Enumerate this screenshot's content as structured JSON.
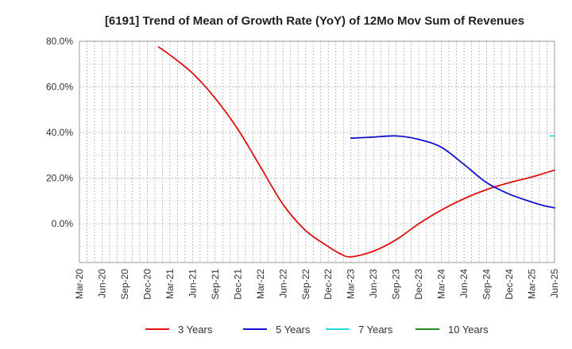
{
  "chart_data": {
    "type": "line",
    "title": "[6191]  Trend of Mean of Growth Rate (YoY) of 12Mo Mov Sum of Revenues",
    "xlabel": "",
    "ylabel": "",
    "ylim": [
      -17,
      80
    ],
    "y_ticks": [
      {
        "value": 80,
        "label": "80.0%"
      },
      {
        "value": 60,
        "label": "60.0%"
      },
      {
        "value": 40,
        "label": "40.0%"
      },
      {
        "value": 20,
        "label": "20.0%"
      },
      {
        "value": 0,
        "label": "0.0%"
      }
    ],
    "x_ticks": [
      "Mar-20",
      "Jun-20",
      "Sep-20",
      "Dec-20",
      "Mar-21",
      "Jun-21",
      "Sep-21",
      "Dec-21",
      "Mar-22",
      "Jun-22",
      "Sep-22",
      "Dec-22",
      "Mar-23",
      "Jun-23",
      "Sep-23",
      "Dec-23",
      "Mar-24",
      "Jun-24",
      "Sep-24",
      "Dec-24",
      "Mar-25",
      "Jun-25"
    ],
    "grid": true,
    "legend_position": "bottom",
    "series": [
      {
        "name": "3 Years",
        "color": "#dd1111",
        "points": [
          [
            3.5,
            77.5
          ],
          [
            4,
            74
          ],
          [
            5,
            66
          ],
          [
            6,
            55
          ],
          [
            7,
            41.5
          ],
          [
            8,
            25
          ],
          [
            9,
            8.5
          ],
          [
            10,
            -3
          ],
          [
            11,
            -10
          ],
          [
            11.5,
            -13
          ],
          [
            12,
            -14.5
          ],
          [
            13,
            -12
          ],
          [
            14,
            -7
          ],
          [
            15,
            0
          ],
          [
            16,
            6
          ],
          [
            17,
            11
          ],
          [
            18,
            15
          ],
          [
            19,
            18
          ],
          [
            20,
            20.5
          ],
          [
            20.5,
            22
          ],
          [
            21,
            23.5
          ]
        ]
      },
      {
        "name": "5 Years",
        "color": "#1111cc",
        "points": [
          [
            12,
            37.5
          ],
          [
            13,
            38
          ],
          [
            14,
            38.5
          ],
          [
            15,
            37
          ],
          [
            16,
            33.5
          ],
          [
            17,
            26
          ],
          [
            18,
            18
          ],
          [
            19,
            13
          ],
          [
            20,
            9.5
          ],
          [
            20.5,
            8
          ],
          [
            21,
            7
          ]
        ]
      },
      {
        "name": "7 Years",
        "color": "#22dddd",
        "points": [
          [
            20.8,
            38.5
          ],
          [
            21,
            38.5
          ]
        ]
      },
      {
        "name": "10 Years",
        "color": "#228822",
        "points": []
      }
    ]
  }
}
